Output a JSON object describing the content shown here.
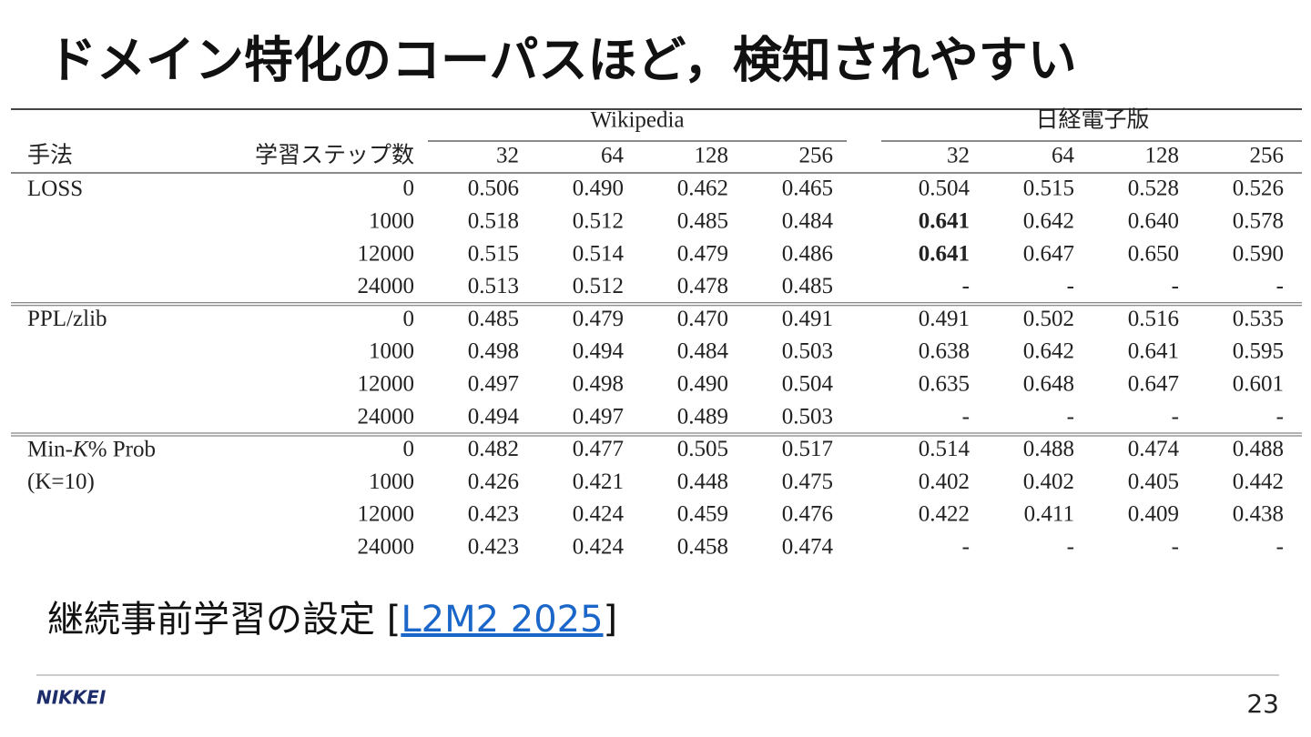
{
  "header": {
    "title": "ドメイン特化のコーパスほど，検知されやすい"
  },
  "table": {
    "groups": [
      "Wikipedia",
      "日経電子版"
    ],
    "columns": [
      "手法",
      "学習ステップ数",
      32,
      64,
      128,
      256,
      32,
      64,
      128,
      256
    ],
    "sections": [
      {
        "method": [
          [
            "LOSS"
          ]
        ],
        "rows": [
          {
            "steps": "0",
            "cells": [
              "0.506",
              "0.490",
              "0.462",
              "0.465",
              "0.504",
              "0.515",
              "0.528",
              "0.526"
            ]
          },
          {
            "steps": "1000",
            "cells": [
              "0.518",
              "0.512",
              "0.485",
              "0.484",
              {
                "text": "0.641",
                "bold": true
              },
              "0.642",
              "0.640",
              "0.578"
            ]
          },
          {
            "steps": "12000",
            "cells": [
              "0.515",
              "0.514",
              "0.479",
              "0.486",
              {
                "text": "0.641",
                "bold": true
              },
              "0.647",
              "0.650",
              "0.590"
            ]
          },
          {
            "steps": "24000",
            "cells": [
              "0.513",
              "0.512",
              "0.478",
              "0.485",
              "-",
              "-",
              "-",
              "-"
            ]
          }
        ]
      },
      {
        "method": [
          [
            "PPL/zlib"
          ]
        ],
        "rows": [
          {
            "steps": "0",
            "cells": [
              "0.485",
              "0.479",
              "0.470",
              "0.491",
              "0.491",
              "0.502",
              "0.516",
              "0.535"
            ]
          },
          {
            "steps": "1000",
            "cells": [
              "0.498",
              "0.494",
              "0.484",
              "0.503",
              "0.638",
              "0.642",
              "0.641",
              "0.595"
            ]
          },
          {
            "steps": "12000",
            "cells": [
              "0.497",
              "0.498",
              "0.490",
              "0.504",
              "0.635",
              "0.648",
              "0.647",
              "0.601"
            ]
          },
          {
            "steps": "24000",
            "cells": [
              "0.494",
              "0.497",
              "0.489",
              "0.503",
              "-",
              "-",
              "-",
              "-"
            ]
          }
        ]
      },
      {
        "method": [
          [
            "Min-",
            {
              "text": "K",
              "italic": true
            },
            "% Prob"
          ],
          [
            "(K=10)"
          ]
        ],
        "rows": [
          {
            "steps": "0",
            "cells": [
              "0.482",
              "0.477",
              "0.505",
              "0.517",
              "0.514",
              "0.488",
              "0.474",
              "0.488"
            ]
          },
          {
            "steps": "1000",
            "cells": [
              "0.426",
              "0.421",
              "0.448",
              "0.475",
              "0.402",
              "0.402",
              "0.405",
              "0.442"
            ]
          },
          {
            "steps": "12000",
            "cells": [
              "0.423",
              "0.424",
              "0.459",
              "0.476",
              "0.422",
              "0.411",
              "0.409",
              "0.438"
            ]
          },
          {
            "steps": "24000",
            "cells": [
              "0.423",
              "0.424",
              "0.458",
              "0.474",
              "-",
              "-",
              "-",
              "-"
            ]
          }
        ]
      }
    ]
  },
  "caption": {
    "prefix": "継続事前学習の設定 [",
    "link": "L2M2 2025",
    "suffix": "]"
  },
  "footer": {
    "logo": "NIKKEI",
    "page": "23"
  }
}
